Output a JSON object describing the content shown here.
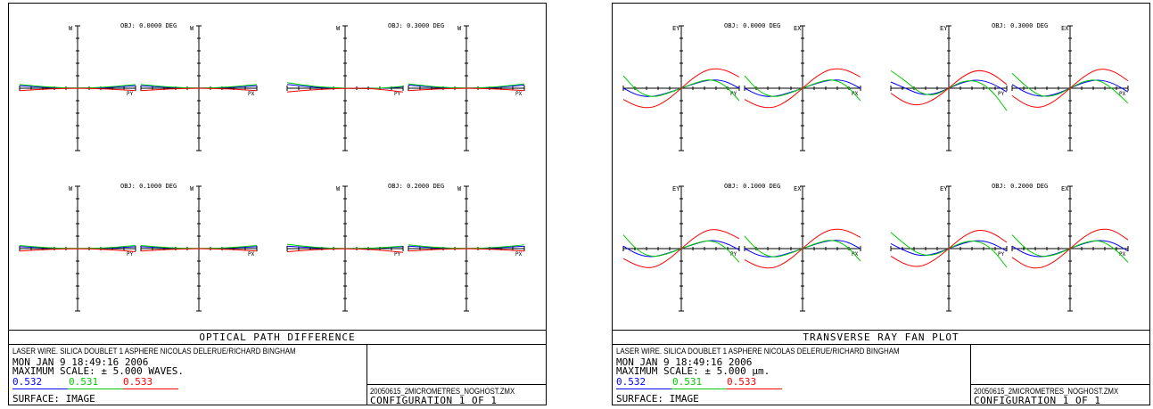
{
  "colors": {
    "wl1": "#0000ff",
    "wl2": "#00cc00",
    "wl3": "#ff0000"
  },
  "panels": [
    {
      "title": "OPTICAL PATH DIFFERENCE",
      "desc": "LASER WIRE. SILICA DOUBLET 1 ASPHERE NICOLAS DELERUE/RICHARD BINGHAM",
      "date": "MON JAN  9 18:49:16 2006",
      "scale": "MAXIMUM SCALE: ± 5.000 WAVES.",
      "wavelengths": [
        "0.532",
        "0.531",
        "0.533"
      ],
      "surface": "SURFACE: IMAGE",
      "file": "20050615_2MICROMETRES_NOGHOST.ZMX",
      "config": "CONFIGURATION  1 OF  1"
    },
    {
      "title": "TRANSVERSE RAY FAN PLOT",
      "desc": "LASER WIRE. SILICA DOUBLET 1 ASPHERE NICOLAS DELERUE/RICHARD BINGHAM",
      "date": "MON JAN  9 18:49:16 2006",
      "scale": "MAXIMUM SCALE: ± 5.000 µm.",
      "wavelengths": [
        "0.532",
        "0.531",
        "0.533"
      ],
      "surface": "SURFACE: IMAGE",
      "file": "20050615_2MICROMETRES_NOGHOST.ZMX",
      "config": "CONFIGURATION  1 OF  1"
    }
  ],
  "chart_data": [
    {
      "type": "line",
      "title": "OPTICAL PATH DIFFERENCE",
      "ylabel": "W",
      "xlim": [
        -1,
        1
      ],
      "ylim": [
        -5,
        5
      ],
      "fields": [
        {
          "label": "OBJ: 0.0000 DEG",
          "PY": {
            "x": [
              -1,
              -0.5,
              0,
              0.5,
              1
            ],
            "series": [
              {
                "name": "0.532",
                "values": [
                  0.2,
                  0.05,
                  0,
                  0.05,
                  0.2
                ]
              },
              {
                "name": "0.531",
                "values": [
                  0.3,
                  0.08,
                  0,
                  0.08,
                  0.3
                ]
              },
              {
                "name": "0.533",
                "values": [
                  -0.2,
                  -0.05,
                  0,
                  -0.05,
                  -0.2
                ]
              }
            ]
          },
          "PX": {
            "x": [
              -1,
              -0.5,
              0,
              0.5,
              1
            ],
            "series": [
              {
                "name": "0.532",
                "values": [
                  0.2,
                  0.05,
                  0,
                  0.05,
                  0.2
                ]
              },
              {
                "name": "0.531",
                "values": [
                  0.3,
                  0.08,
                  0,
                  0.08,
                  0.3
                ]
              },
              {
                "name": "0.533",
                "values": [
                  -0.2,
                  -0.05,
                  0,
                  -0.05,
                  -0.2
                ]
              }
            ]
          }
        },
        {
          "label": "OBJ: 0.3000 DEG",
          "PY": {
            "x": [
              -1,
              -0.5,
              0,
              0.5,
              1
            ],
            "series": [
              {
                "name": "0.532",
                "values": [
                  0.3,
                  0.05,
                  0,
                  -0.05,
                  0.1
                ]
              },
              {
                "name": "0.531",
                "values": [
                  0.45,
                  0.1,
                  0,
                  -0.05,
                  0.15
                ]
              },
              {
                "name": "0.533",
                "values": [
                  -0.3,
                  -0.1,
                  0,
                  -0.02,
                  -0.3
                ]
              }
            ]
          },
          "PX": {
            "x": [
              -1,
              -0.5,
              0,
              0.5,
              1
            ],
            "series": [
              {
                "name": "0.532",
                "values": [
                  0.25,
                  0.05,
                  0,
                  0.05,
                  0.25
                ]
              },
              {
                "name": "0.531",
                "values": [
                  0.35,
                  0.08,
                  0,
                  0.08,
                  0.35
                ]
              },
              {
                "name": "0.533",
                "values": [
                  -0.2,
                  -0.05,
                  0,
                  -0.05,
                  -0.2
                ]
              }
            ]
          }
        },
        {
          "label": "OBJ: 0.1000 DEG",
          "PY": {
            "x": [
              -1,
              -0.5,
              0,
              0.5,
              1
            ],
            "series": [
              {
                "name": "0.532",
                "values": [
                  0.15,
                  0.04,
                  0,
                  0.03,
                  0.15
                ]
              },
              {
                "name": "0.531",
                "values": [
                  0.25,
                  0.06,
                  0,
                  0.05,
                  0.25
                ]
              },
              {
                "name": "0.533",
                "values": [
                  -0.2,
                  -0.05,
                  0,
                  -0.06,
                  -0.25
                ]
              }
            ]
          },
          "PX": {
            "x": [
              -1,
              -0.5,
              0,
              0.5,
              1
            ],
            "series": [
              {
                "name": "0.532",
                "values": [
                  0.15,
                  0.04,
                  0,
                  0.04,
                  0.15
                ]
              },
              {
                "name": "0.531",
                "values": [
                  0.25,
                  0.06,
                  0,
                  0.06,
                  0.25
                ]
              },
              {
                "name": "0.533",
                "values": [
                  -0.2,
                  -0.05,
                  0,
                  -0.05,
                  -0.2
                ]
              }
            ]
          }
        },
        {
          "label": "OBJ: 0.2000 DEG",
          "PY": {
            "x": [
              -1,
              -0.5,
              0,
              0.5,
              1
            ],
            "series": [
              {
                "name": "0.532",
                "values": [
                  0.2,
                  0.05,
                  0,
                  0.02,
                  0.15
                ]
              },
              {
                "name": "0.531",
                "values": [
                  0.35,
                  0.08,
                  0,
                  0.03,
                  0.2
                ]
              },
              {
                "name": "0.533",
                "values": [
                  -0.25,
                  -0.07,
                  0,
                  -0.08,
                  -0.3
                ]
              }
            ]
          },
          "PX": {
            "x": [
              -1,
              -0.5,
              0,
              0.5,
              1
            ],
            "series": [
              {
                "name": "0.532",
                "values": [
                  0.2,
                  0.05,
                  0,
                  0.05,
                  0.2
                ]
              },
              {
                "name": "0.531",
                "values": [
                  0.3,
                  0.07,
                  0,
                  0.07,
                  0.3
                ]
              },
              {
                "name": "0.533",
                "values": [
                  -0.2,
                  -0.05,
                  0,
                  -0.05,
                  -0.2
                ]
              }
            ]
          }
        }
      ]
    },
    {
      "type": "line",
      "title": "TRANSVERSE RAY FAN PLOT",
      "ylabel": [
        "EY",
        "EX"
      ],
      "xlim": [
        -1,
        1
      ],
      "ylim": [
        -5,
        5
      ],
      "fields": [
        {
          "label": "OBJ: 0.0000 DEG",
          "PY": {
            "x": [
              -1,
              -0.75,
              -0.5,
              -0.25,
              0,
              0.25,
              0.5,
              0.75,
              1
            ],
            "series": [
              {
                "name": "0.532",
                "values": [
                  0,
                  -0.6,
                  -0.7,
                  -0.4,
                  0,
                  0.4,
                  0.7,
                  0.6,
                  0
                ]
              },
              {
                "name": "0.531",
                "values": [
                  1.0,
                  -0.3,
                  -0.75,
                  -0.45,
                  0,
                  0.45,
                  0.75,
                  0.3,
                  -1.0
                ]
              },
              {
                "name": "0.533",
                "values": [
                  -0.9,
                  -1.5,
                  -1.6,
                  -1.0,
                  0,
                  1.0,
                  1.6,
                  1.5,
                  0.9
                ]
              }
            ]
          },
          "PX": {
            "x": [
              -1,
              -0.75,
              -0.5,
              -0.25,
              0,
              0.25,
              0.5,
              0.75,
              1
            ],
            "series": [
              {
                "name": "0.532",
                "values": [
                  0,
                  -0.6,
                  -0.7,
                  -0.4,
                  0,
                  0.4,
                  0.7,
                  0.6,
                  0
                ]
              },
              {
                "name": "0.531",
                "values": [
                  1.0,
                  -0.3,
                  -0.75,
                  -0.45,
                  0,
                  0.45,
                  0.75,
                  0.3,
                  -1.0
                ]
              },
              {
                "name": "0.533",
                "values": [
                  -0.9,
                  -1.5,
                  -1.6,
                  -1.0,
                  0,
                  1.0,
                  1.6,
                  1.5,
                  0.9
                ]
              }
            ]
          }
        },
        {
          "label": "OBJ: 0.3000 DEG",
          "PY": {
            "x": [
              -1,
              -0.75,
              -0.5,
              -0.25,
              0,
              0.25,
              0.5,
              0.75,
              1
            ],
            "series": [
              {
                "name": "0.532",
                "values": [
                  0.5,
                  0,
                  -0.5,
                  -0.5,
                  0,
                  0.5,
                  0.7,
                  0.4,
                  -0.3
                ]
              },
              {
                "name": "0.531",
                "values": [
                  1.4,
                  0.6,
                  -0.4,
                  -0.6,
                  0,
                  0.6,
                  0.6,
                  -0.2,
                  -1.8
                ]
              },
              {
                "name": "0.533",
                "values": [
                  -0.4,
                  -1.2,
                  -1.4,
                  -0.9,
                  0,
                  1.0,
                  1.5,
                  1.2,
                  0.3
                ]
              }
            ]
          },
          "PX": {
            "x": [
              -1,
              -0.75,
              -0.5,
              -0.25,
              0,
              0.25,
              0.5,
              0.75,
              1
            ],
            "series": [
              {
                "name": "0.532",
                "values": [
                  0.3,
                  -0.4,
                  -0.7,
                  -0.5,
                  0,
                  0.5,
                  0.7,
                  0.4,
                  -0.3
                ]
              },
              {
                "name": "0.531",
                "values": [
                  1.2,
                  0.1,
                  -0.7,
                  -0.6,
                  0,
                  0.6,
                  0.7,
                  -0.1,
                  -1.2
                ]
              },
              {
                "name": "0.533",
                "values": [
                  -0.6,
                  -1.4,
                  -1.6,
                  -1.0,
                  0,
                  1.0,
                  1.6,
                  1.4,
                  0.6
                ]
              }
            ]
          }
        },
        {
          "label": "OBJ: 0.1000 DEG",
          "PY": {
            "x": [
              -1,
              -0.75,
              -0.5,
              -0.25,
              0,
              0.25,
              0.5,
              0.75,
              1
            ],
            "series": [
              {
                "name": "0.532",
                "values": [
                  0.2,
                  -0.5,
                  -0.7,
                  -0.4,
                  0,
                  0.4,
                  0.7,
                  0.5,
                  -0.1
                ]
              },
              {
                "name": "0.531",
                "values": [
                  1.1,
                  -0.2,
                  -0.7,
                  -0.45,
                  0,
                  0.45,
                  0.7,
                  0.2,
                  -1.1
                ]
              },
              {
                "name": "0.533",
                "values": [
                  -0.8,
                  -1.4,
                  -1.6,
                  -1.0,
                  0,
                  1.0,
                  1.6,
                  1.4,
                  0.8
                ]
              }
            ]
          },
          "PX": {
            "x": [
              -1,
              -0.75,
              -0.5,
              -0.25,
              0,
              0.25,
              0.5,
              0.75,
              1
            ],
            "series": [
              {
                "name": "0.532",
                "values": [
                  0,
                  -0.6,
                  -0.7,
                  -0.4,
                  0,
                  0.4,
                  0.7,
                  0.6,
                  0
                ]
              },
              {
                "name": "0.531",
                "values": [
                  1.0,
                  -0.3,
                  -0.75,
                  -0.45,
                  0,
                  0.45,
                  0.75,
                  0.3,
                  -1.0
                ]
              },
              {
                "name": "0.533",
                "values": [
                  -0.9,
                  -1.5,
                  -1.6,
                  -1.0,
                  0,
                  1.0,
                  1.6,
                  1.5,
                  0.9
                ]
              }
            ]
          }
        },
        {
          "label": "OBJ: 0.2000 DEG",
          "PY": {
            "x": [
              -1,
              -0.75,
              -0.5,
              -0.25,
              0,
              0.25,
              0.5,
              0.75,
              1
            ],
            "series": [
              {
                "name": "0.532",
                "values": [
                  0.4,
                  -0.2,
                  -0.6,
                  -0.45,
                  0,
                  0.45,
                  0.7,
                  0.45,
                  -0.2
                ]
              },
              {
                "name": "0.531",
                "values": [
                  1.3,
                  0.3,
                  -0.5,
                  -0.55,
                  0,
                  0.55,
                  0.65,
                  0,
                  -1.5
                ]
              },
              {
                "name": "0.533",
                "values": [
                  -0.6,
                  -1.3,
                  -1.5,
                  -0.95,
                  0,
                  1.0,
                  1.55,
                  1.3,
                  0.5
                ]
              }
            ]
          },
          "PX": {
            "x": [
              -1,
              -0.75,
              -0.5,
              -0.25,
              0,
              0.25,
              0.5,
              0.75,
              1
            ],
            "series": [
              {
                "name": "0.532",
                "values": [
                  0.2,
                  -0.5,
                  -0.7,
                  -0.45,
                  0,
                  0.45,
                  0.7,
                  0.5,
                  -0.2
                ]
              },
              {
                "name": "0.531",
                "values": [
                  1.1,
                  -0.1,
                  -0.7,
                  -0.5,
                  0,
                  0.5,
                  0.7,
                  0.1,
                  -1.1
                ]
              },
              {
                "name": "0.533",
                "values": [
                  -0.7,
                  -1.5,
                  -1.6,
                  -1.0,
                  0,
                  1.0,
                  1.6,
                  1.5,
                  0.7
                ]
              }
            ]
          }
        }
      ]
    }
  ]
}
